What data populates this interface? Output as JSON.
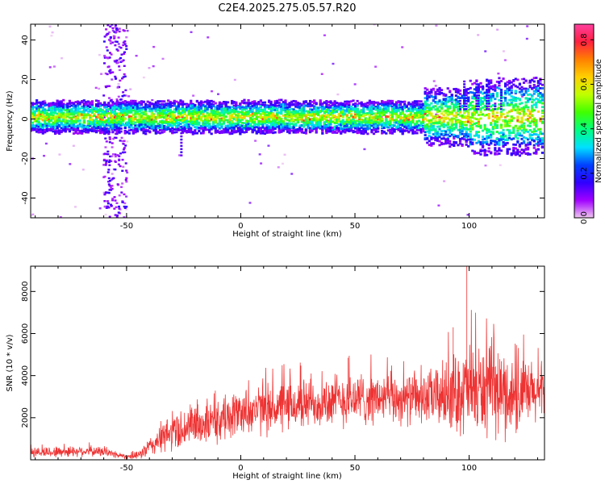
{
  "title": "C2E4.2025.275.05.57.R20",
  "chart_data": [
    {
      "type": "heatmap",
      "name": "spectrogram",
      "xlabel": "Height of straight line (km)",
      "ylabel": "Frequency (Hz)",
      "xlim": [
        -92,
        133
      ],
      "ylim": [
        -50,
        48
      ],
      "xticks": [
        -50,
        0,
        50,
        100
      ],
      "xtick_labels": [
        "-50",
        "0",
        "50",
        "100"
      ],
      "yticks": [
        -40,
        -20,
        0,
        20,
        40
      ],
      "ytick_labels": [
        "-40",
        "-20",
        "0",
        "20",
        "40"
      ],
      "ridge_frequency_hz": 1,
      "colorbar": {
        "label": "Normalized spectral amplitude",
        "range": [
          0.0,
          0.87
        ],
        "ticks": [
          0.0,
          0.2,
          0.4,
          0.6,
          0.8
        ],
        "tick_labels": [
          "0.0",
          "0.2",
          "0.4",
          "0.6",
          "0.8"
        ],
        "colormap": [
          "#f0c8f0",
          "#a000ff",
          "#3000ff",
          "#0040ff",
          "#00e0ff",
          "#00ff80",
          "#40ff00",
          "#c0ff00",
          "#ffd000",
          "#ff8000",
          "#ff2040",
          "#ff40a0"
        ]
      }
    },
    {
      "type": "line",
      "name": "snr",
      "xlabel": "Height of straight line (km)",
      "ylabel": "SNR (10 * v/v)",
      "xlim": [
        -92,
        133
      ],
      "ylim": [
        0,
        9200
      ],
      "xticks": [
        -50,
        0,
        50,
        100
      ],
      "xtick_labels": [
        "-50",
        "0",
        "50",
        "100"
      ],
      "yticks": [
        2000,
        4000,
        6000,
        8000
      ],
      "ytick_labels": [
        "2000",
        "4000",
        "6000",
        "8000"
      ],
      "color": "#ee3333",
      "envelope": {
        "x": [
          -92,
          -80,
          -70,
          -60,
          -50,
          -45,
          -40,
          -35,
          -30,
          -25,
          -20,
          -10,
          0,
          10,
          20,
          30,
          40,
          50,
          60,
          70,
          80,
          90,
          100,
          110,
          120,
          133
        ],
        "mean": [
          350,
          380,
          420,
          380,
          150,
          200,
          600,
          1000,
          1300,
          1500,
          1700,
          1800,
          2300,
          2400,
          2500,
          2700,
          2800,
          2900,
          2900,
          2900,
          2900,
          3100,
          3300,
          3300,
          3000,
          3200
        ],
        "amp": [
          250,
          300,
          280,
          250,
          120,
          200,
          500,
          800,
          1000,
          1100,
          1100,
          1100,
          1200,
          1300,
          1300,
          1300,
          1400,
          1400,
          1300,
          1300,
          1300,
          1800,
          2400,
          2400,
          2000,
          1500
        ]
      },
      "spikes": [
        {
          "x": 99,
          "y": 9200
        },
        {
          "x": 47,
          "y": 4850
        },
        {
          "x": 93,
          "y": 6300
        }
      ]
    }
  ]
}
